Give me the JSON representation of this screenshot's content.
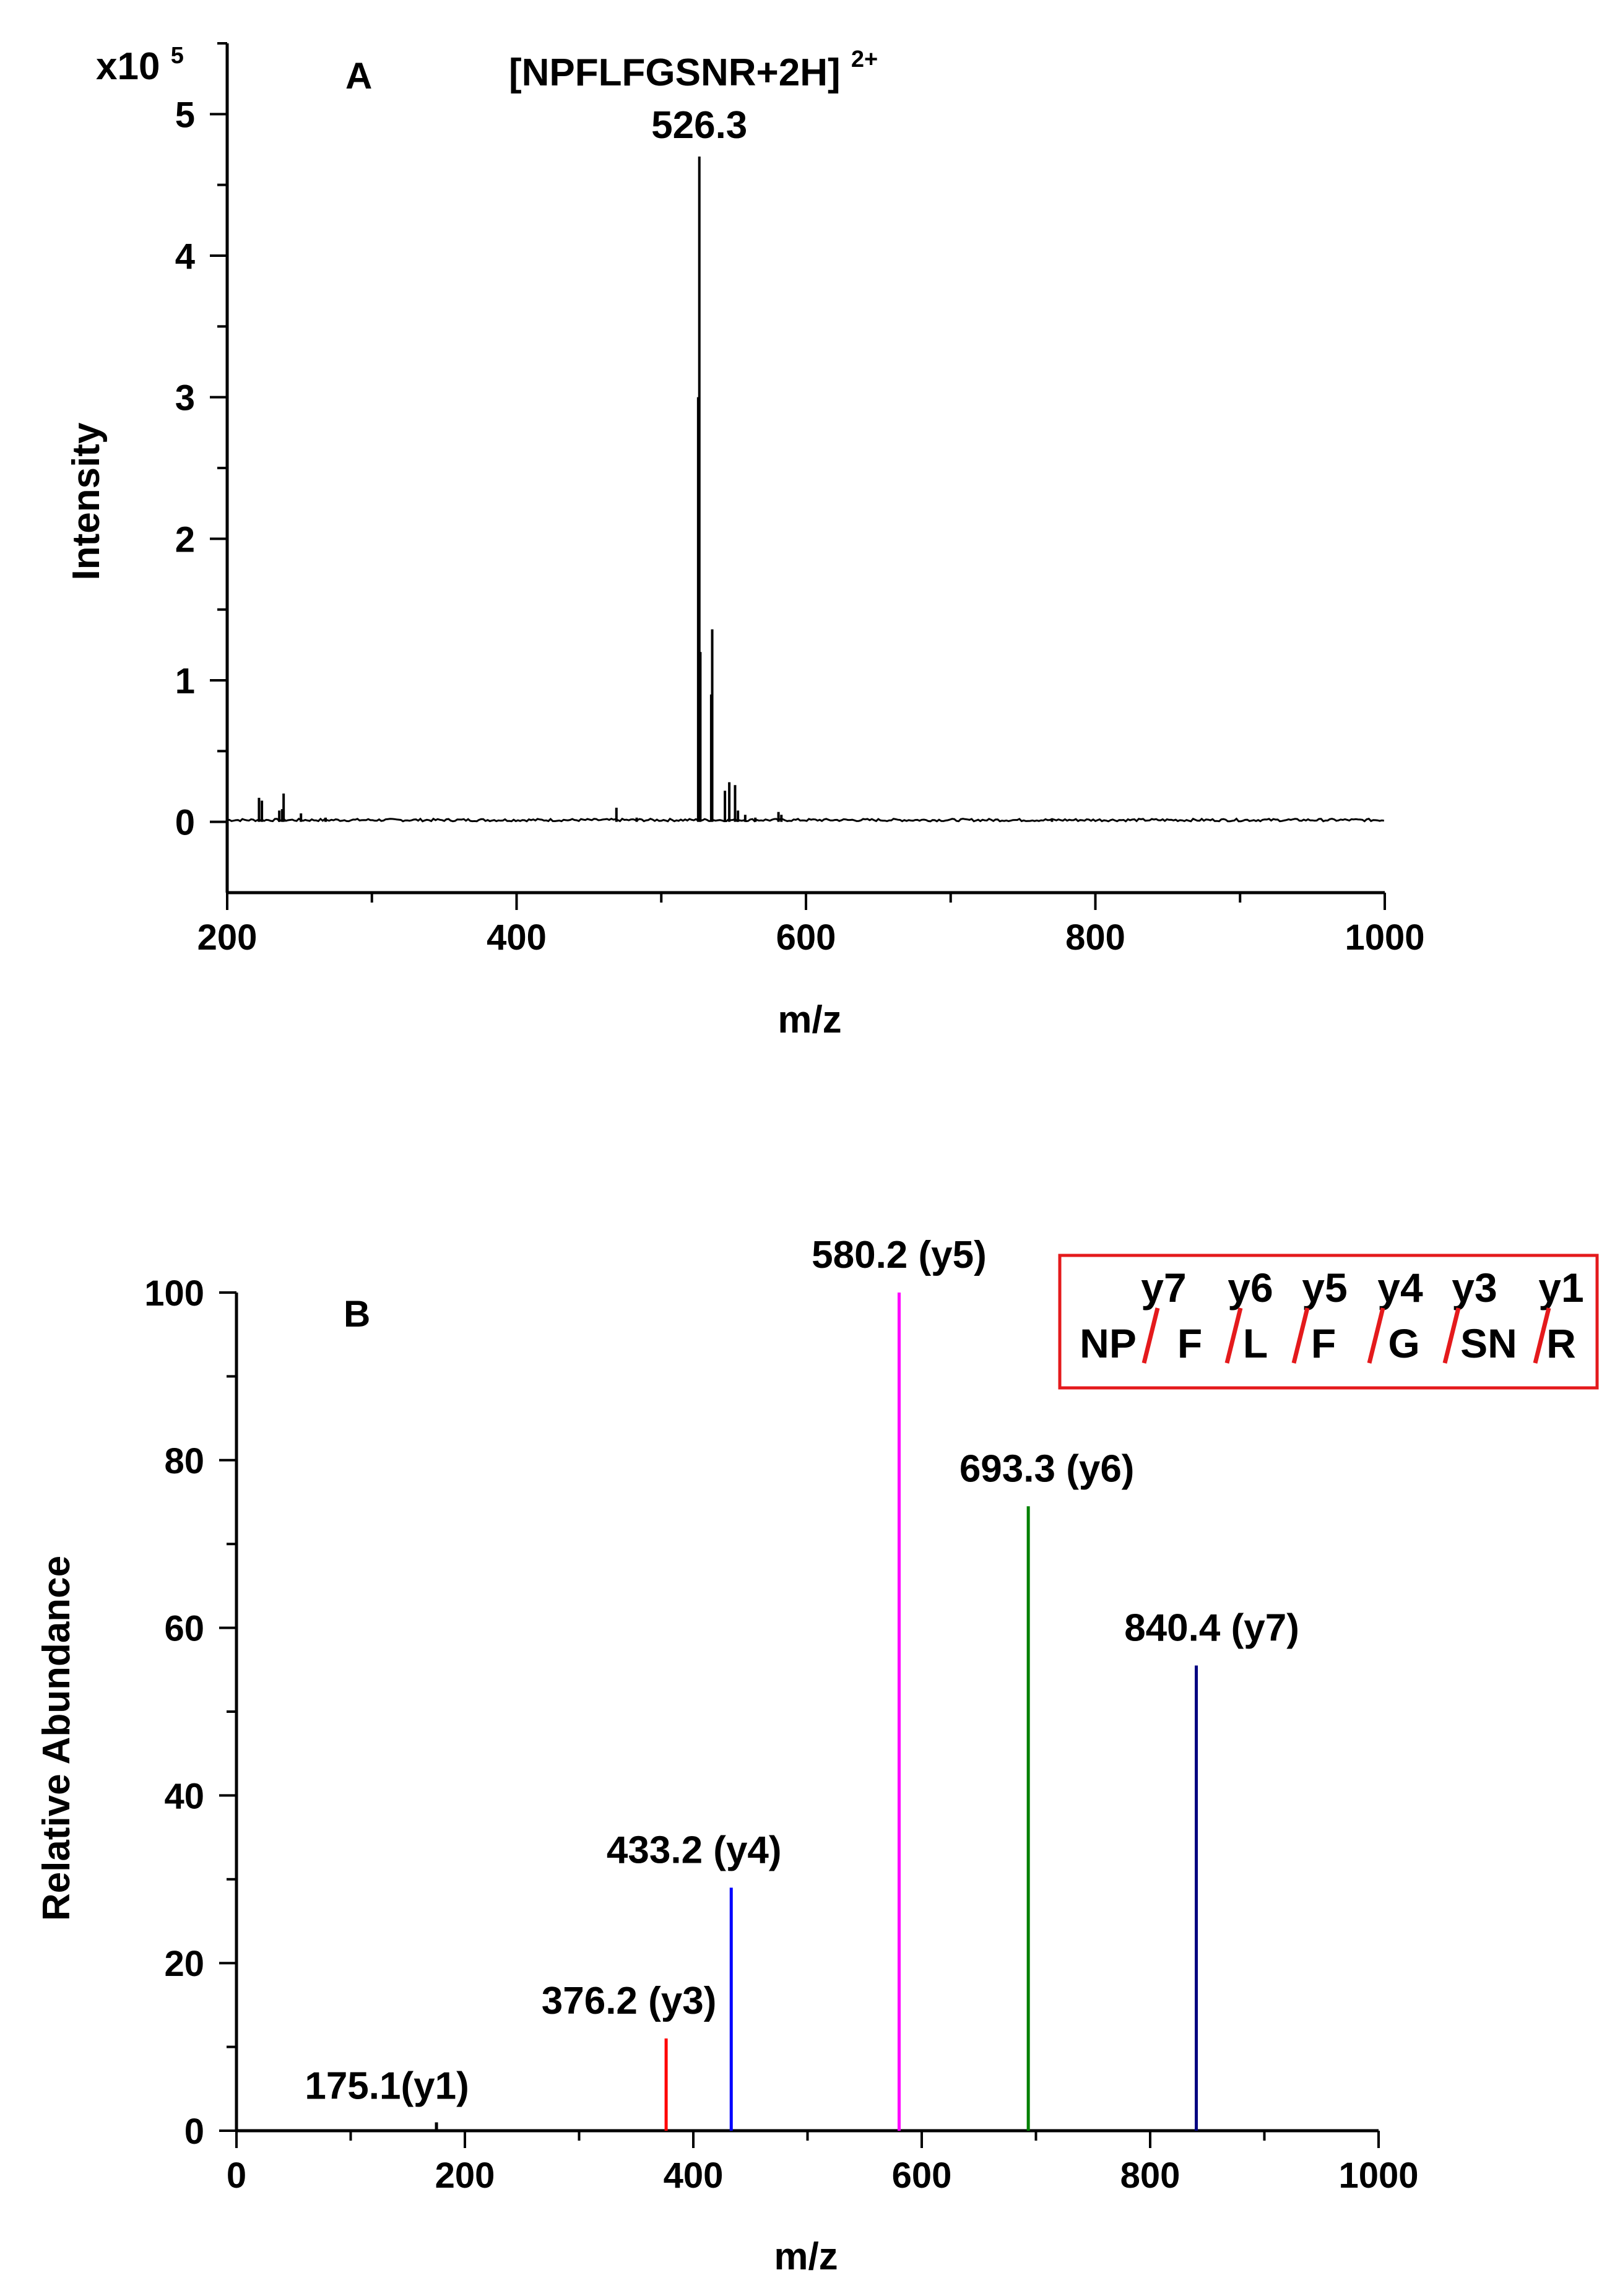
{
  "chart_data": [
    {
      "panel": "A",
      "type": "line",
      "title": "",
      "xlabel": "m/z",
      "ylabel": "Intensity",
      "y_scale_label": {
        "base": "x10",
        "exponent": "5"
      },
      "xlim": [
        200,
        1000
      ],
      "ylim": [
        -0.5,
        5.5
      ],
      "x_ticks": [
        200,
        400,
        600,
        800,
        1000
      ],
      "x_tick_labels": [
        "200",
        "400",
        "600",
        "800",
        "1000"
      ],
      "y_ticks": [
        0,
        1,
        2,
        3,
        4,
        5
      ],
      "y_tick_labels": [
        "0",
        "1",
        "2",
        "3",
        "4",
        "5"
      ],
      "series": [
        {
          "name": "spectrum",
          "color": "#000000",
          "peaks": [
            {
              "x": 222,
              "y": 0.17
            },
            {
              "x": 224,
              "y": 0.15
            },
            {
              "x": 236,
              "y": 0.08
            },
            {
              "x": 238,
              "y": 0.09
            },
            {
              "x": 239,
              "y": 0.2
            },
            {
              "x": 251,
              "y": 0.06
            },
            {
              "x": 268,
              "y": 0.03
            },
            {
              "x": 469,
              "y": 0.1
            },
            {
              "x": 483,
              "y": 0.03
            },
            {
              "x": 525.5,
              "y": 3.0
            },
            {
              "x": 526.3,
              "y": 4.7
            },
            {
              "x": 527.0,
              "y": 1.2
            },
            {
              "x": 534.5,
              "y": 0.9
            },
            {
              "x": 535.2,
              "y": 1.36
            },
            {
              "x": 544,
              "y": 0.22
            },
            {
              "x": 547,
              "y": 0.28
            },
            {
              "x": 551,
              "y": 0.26
            },
            {
              "x": 553,
              "y": 0.08
            },
            {
              "x": 558,
              "y": 0.05
            },
            {
              "x": 565,
              "y": 0.03
            },
            {
              "x": 581,
              "y": 0.07
            },
            {
              "x": 583,
              "y": 0.05
            },
            {
              "x": 770,
              "y": 0.02
            }
          ]
        }
      ],
      "annotations": [
        {
          "text": "A",
          "role": "panel-label"
        },
        {
          "text": "[NPFLFGSNR+2H]",
          "superscript": "2+"
        },
        {
          "text": "526.3",
          "x": 526.3
        }
      ]
    },
    {
      "panel": "B",
      "type": "bar",
      "title": "",
      "xlabel": "m/z",
      "ylabel": "Relative Abundance",
      "xlim": [
        0,
        1000
      ],
      "ylim": [
        0,
        100
      ],
      "x_ticks": [
        0,
        200,
        400,
        600,
        800,
        1000
      ],
      "x_tick_labels": [
        "0",
        "200",
        "400",
        "600",
        "800",
        "1000"
      ],
      "y_ticks": [
        0,
        20,
        40,
        60,
        80,
        100
      ],
      "y_tick_labels": [
        "0",
        "20",
        "40",
        "60",
        "80",
        "100"
      ],
      "series": [
        {
          "name": "fragment ions",
          "peaks": [
            {
              "x": 175.1,
              "y": 1,
              "label": "175.1(y1)",
              "color": "#000000"
            },
            {
              "x": 376.2,
              "y": 11,
              "label": "376.2 (y3)",
              "color": "#ff0000"
            },
            {
              "x": 433.2,
              "y": 29,
              "label": "433.2 (y4)",
              "color": "#0000ff"
            },
            {
              "x": 580.2,
              "y": 100,
              "label": "580.2 (y5)",
              "color": "#ff00ff"
            },
            {
              "x": 693.3,
              "y": 74.5,
              "label": "693.3 (y6)",
              "color": "#008000"
            },
            {
              "x": 840.4,
              "y": 55.5,
              "label": "840.4 (y7)",
              "color": "#000080"
            }
          ]
        }
      ],
      "annotations": [
        {
          "text": "B",
          "role": "panel-label"
        }
      ],
      "sequence_box": {
        "border_color": "#e41a1c",
        "cleavage_color": "#e41a1c",
        "ions": [
          "y7",
          "y6",
          "y5",
          "y4",
          "y3",
          "y1"
        ],
        "residues": [
          "NP",
          "F",
          "L",
          "F",
          "G",
          "SN",
          "R"
        ]
      }
    }
  ]
}
